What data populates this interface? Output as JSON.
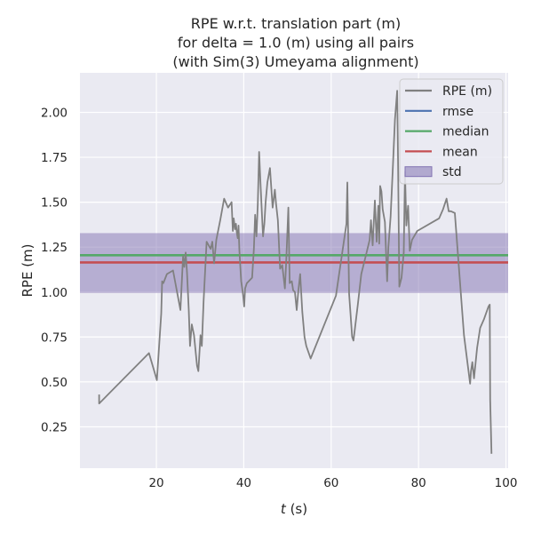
{
  "chart_data": {
    "type": "line",
    "title": [
      "RPE w.r.t. translation part (m)",
      "for delta = 1.0 (m) using all pairs",
      "(with Sim(3) Umeyama alignment)"
    ],
    "xlabel_var": "t",
    "xlabel_unit": " (s)",
    "ylabel": "RPE (m)",
    "xlim": [
      2.5,
      100.5
    ],
    "ylim": [
      0.02,
      2.22
    ],
    "x_ticks": [
      20,
      40,
      60,
      80,
      100
    ],
    "y_ticks": [
      0.25,
      0.5,
      0.75,
      1.0,
      1.25,
      1.5,
      1.75,
      2.0
    ],
    "y_tick_labels": [
      "0.25",
      "0.50",
      "0.75",
      "1.00",
      "1.25",
      "1.50",
      "1.75",
      "2.00"
    ],
    "grid": true,
    "legend_position": "top-right",
    "stats": {
      "rmse": 1.205,
      "median": 1.205,
      "mean": 1.165,
      "std_band": [
        0.995,
        1.328
      ]
    },
    "legend": [
      {
        "label": "RPE (m)",
        "kind": "line",
        "color": "#808080"
      },
      {
        "label": "rmse",
        "kind": "line",
        "color": "#4c72b0"
      },
      {
        "label": "median",
        "kind": "line",
        "color": "#55a868"
      },
      {
        "label": "mean",
        "kind": "line",
        "color": "#c44e52"
      },
      {
        "label": "std",
        "kind": "patch",
        "color": "#8172b2"
      }
    ],
    "series": [
      {
        "name": "RPE (m)",
        "color": "#808080",
        "x": [
          6.9,
          6.9,
          18.3,
          20.1,
          21.1,
          21.3,
          21.6,
          22.4,
          23.8,
          25.5,
          25.8,
          26.1,
          26.4,
          26.7,
          27.0,
          27.4,
          27.7,
          28.1,
          28.6,
          29.3,
          29.6,
          30.1,
          30.4,
          30.8,
          31.5,
          32.4,
          32.8,
          33.2,
          33.7,
          34.6,
          35.5,
          36.4,
          37.2,
          37.5,
          37.7,
          38.0,
          38.2,
          38.4,
          38.6,
          38.8,
          39.0,
          39.4,
          39.8,
          40.1,
          40.3,
          40.7,
          41.9,
          42.3,
          42.6,
          42.9,
          43.2,
          43.5,
          43.8,
          44.2,
          44.4,
          44.7,
          45.0,
          45.4,
          46.0,
          46.6,
          47.1,
          47.4,
          47.8,
          48.3,
          48.8,
          49.4,
          49.7,
          50.2,
          50.5,
          51.0,
          51.3,
          51.7,
          52.1,
          52.5,
          52.9,
          53.4,
          53.9,
          54.3,
          55.3,
          61.1,
          63.5,
          63.7,
          64.1,
          64.8,
          65.1,
          66.1,
          66.9,
          67.9,
          68.8,
          69.1,
          69.5,
          70.0,
          70.4,
          70.8,
          71.0,
          71.2,
          71.5,
          71.8,
          72.3,
          72.8,
          73.1,
          73.6,
          74.1,
          74.6,
          75.1,
          75.3,
          75.6,
          76.1,
          76.6,
          76.9,
          77.2,
          77.6,
          78.0,
          78.5,
          79.7,
          84.7,
          85.6,
          86.4,
          86.9,
          87.4,
          88.3,
          90.4,
          91.8,
          92.0,
          92.3,
          92.7,
          93.4,
          94.1,
          95.0,
          96.0,
          96.3,
          96.4,
          96.7
        ],
        "values": [
          0.43,
          0.38,
          0.66,
          0.51,
          0.88,
          1.06,
          1.05,
          1.1,
          1.12,
          0.9,
          1.05,
          1.2,
          1.14,
          1.22,
          1.11,
          0.9,
          0.7,
          0.82,
          0.76,
          0.59,
          0.56,
          0.76,
          0.7,
          0.95,
          1.28,
          1.24,
          1.28,
          1.16,
          1.29,
          1.4,
          1.52,
          1.47,
          1.5,
          1.34,
          1.41,
          1.35,
          1.38,
          1.33,
          1.3,
          1.37,
          1.23,
          1.06,
          0.99,
          0.92,
          1.02,
          1.05,
          1.08,
          1.24,
          1.43,
          1.31,
          1.49,
          1.78,
          1.62,
          1.41,
          1.31,
          1.38,
          1.5,
          1.61,
          1.69,
          1.47,
          1.57,
          1.49,
          1.4,
          1.13,
          1.15,
          1.02,
          1.16,
          1.47,
          1.05,
          1.06,
          1.01,
          1.0,
          0.9,
          1.01,
          1.1,
          0.89,
          0.75,
          0.7,
          0.63,
          0.98,
          1.38,
          1.61,
          0.99,
          0.75,
          0.73,
          0.93,
          1.1,
          1.2,
          1.29,
          1.4,
          1.26,
          1.51,
          1.28,
          1.48,
          1.27,
          1.59,
          1.56,
          1.46,
          1.39,
          1.06,
          1.25,
          1.42,
          1.69,
          1.96,
          2.12,
          1.72,
          1.03,
          1.08,
          1.22,
          1.67,
          1.37,
          1.48,
          1.23,
          1.29,
          1.34,
          1.41,
          1.46,
          1.52,
          1.45,
          1.45,
          1.44,
          0.76,
          0.49,
          0.56,
          0.61,
          0.52,
          0.69,
          0.8,
          0.85,
          0.92,
          0.93,
          0.4,
          0.1
        ]
      }
    ]
  }
}
